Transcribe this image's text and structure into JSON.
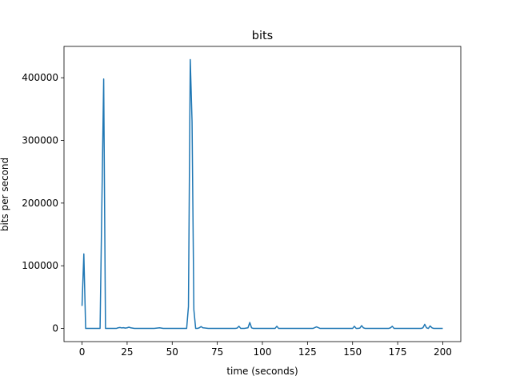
{
  "chart_data": {
    "type": "line",
    "title": "bits",
    "xlabel": "time (seconds)",
    "ylabel": "bits per second",
    "xlim": [
      -10,
      210
    ],
    "ylim": [
      -21000,
      450000
    ],
    "xticks": [
      0,
      25,
      50,
      75,
      100,
      125,
      150,
      175,
      200
    ],
    "yticks": [
      0,
      100000,
      200000,
      300000,
      400000
    ],
    "grid": false,
    "line_color": "#1f77b4",
    "series": [
      {
        "x": [
          0,
          1,
          2,
          3,
          4,
          5,
          6,
          7,
          8,
          9,
          10,
          11,
          12,
          13,
          14,
          15,
          16,
          17,
          18,
          19,
          20,
          21,
          22,
          23,
          24,
          25,
          26,
          27,
          28,
          29,
          30,
          32,
          35,
          40,
          43,
          45,
          50,
          55,
          58,
          59,
          60,
          61,
          62,
          63,
          64,
          65,
          66,
          67,
          70,
          75,
          80,
          85,
          86,
          87,
          88,
          90,
          92,
          93,
          94,
          95,
          100,
          105,
          107,
          108,
          109,
          110,
          115,
          120,
          125,
          128,
          130,
          132,
          135,
          140,
          145,
          149,
          150,
          151,
          152,
          153,
          154,
          155,
          156,
          157,
          160,
          165,
          170,
          171,
          172,
          173,
          175,
          180,
          185,
          188,
          189,
          190,
          191,
          192,
          193,
          194,
          195,
          200
        ],
        "values": [
          36000,
          119000,
          0,
          0,
          0,
          0,
          0,
          0,
          0,
          0,
          0,
          200000,
          398000,
          0,
          0,
          0,
          0,
          0,
          0,
          0,
          1000,
          1500,
          800,
          1200,
          500,
          1000,
          2000,
          1000,
          500,
          0,
          0,
          0,
          0,
          0,
          1000,
          0,
          0,
          0,
          0,
          35000,
          429000,
          330000,
          30000,
          0,
          0,
          1000,
          3000,
          1000,
          0,
          0,
          0,
          0,
          500,
          3500,
          0,
          0,
          1000,
          9500,
          1000,
          0,
          0,
          0,
          0,
          3500,
          0,
          0,
          0,
          0,
          0,
          0,
          2500,
          0,
          0,
          0,
          0,
          0,
          0,
          3500,
          0,
          0,
          500,
          4500,
          1000,
          0,
          0,
          0,
          0,
          1000,
          3500,
          0,
          0,
          0,
          0,
          0,
          1000,
          6500,
          1000,
          0,
          4000,
          1000,
          0,
          0
        ]
      }
    ]
  }
}
